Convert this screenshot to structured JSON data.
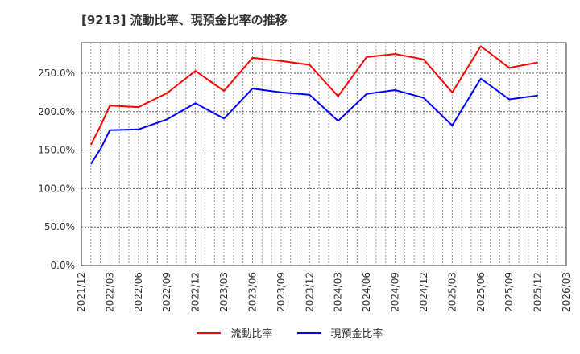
{
  "title": "[9213]  流動比率、現預金比率の推移",
  "legend": [
    {
      "label": "流動比率",
      "color": "#ff0000"
    },
    {
      "label": "現預金比率",
      "color": "#0000ff"
    }
  ],
  "chart_data": {
    "type": "line",
    "title": "[9213]  流動比率、現預金比率の推移",
    "xlabel": "",
    "ylabel": "",
    "ylim": [
      0,
      290
    ],
    "y_ticks": [
      "0.0%",
      "50.0%",
      "100.0%",
      "150.0%",
      "200.0%",
      "250.0%"
    ],
    "x_ticks": [
      "2021/12",
      "2022/03",
      "2022/06",
      "2022/09",
      "2022/12",
      "2023/03",
      "2023/06",
      "2023/09",
      "2023/12",
      "2024/03",
      "2024/06",
      "2024/09",
      "2024/12",
      "2025/03",
      "2025/06",
      "2025/09",
      "2025/12",
      "2026/03"
    ],
    "grid": true,
    "legend_position": "bottom",
    "x": [
      "2022/01",
      "2022/02",
      "2022/03",
      "2022/06",
      "2022/09",
      "2022/12",
      "2023/03",
      "2023/06",
      "2023/09",
      "2023/12",
      "2024/03",
      "2024/06",
      "2024/09",
      "2024/12",
      "2025/03",
      "2025/06",
      "2025/09",
      "2025/12"
    ],
    "series": [
      {
        "name": "流動比率",
        "color": "#ff0000",
        "values": [
          157,
          181,
          208,
          206,
          224,
          253,
          227,
          270,
          266,
          261,
          220,
          271,
          275,
          268,
          225,
          285,
          257,
          264
        ]
      },
      {
        "name": "現預金比率",
        "color": "#0000ff",
        "values": [
          132,
          151,
          176,
          177,
          190,
          211,
          191,
          230,
          225,
          222,
          188,
          223,
          228,
          218,
          182,
          243,
          216,
          221
        ]
      }
    ]
  }
}
